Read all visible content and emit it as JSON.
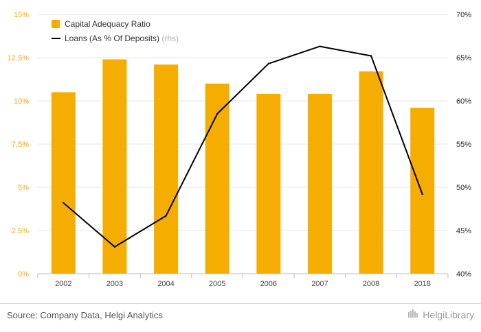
{
  "chart_data": {
    "type": "bar",
    "categories": [
      "2002",
      "2003",
      "2004",
      "2005",
      "2006",
      "2007",
      "2008",
      "2018"
    ],
    "series": [
      {
        "name": "Capital Adequacy Ratio",
        "kind": "bar",
        "axis": "left",
        "color": "#f5ae00",
        "values": [
          10.5,
          12.4,
          12.1,
          11.0,
          10.4,
          10.4,
          11.7,
          9.6
        ]
      },
      {
        "name": "Loans (As % Of Deposits)",
        "name_suffix": "(rhs)",
        "kind": "line",
        "axis": "right",
        "color": "#000000",
        "values": [
          48.2,
          43.1,
          46.7,
          58.5,
          64.3,
          66.3,
          65.2,
          49.2
        ]
      }
    ],
    "y_left": {
      "ylim": [
        0,
        15
      ],
      "ticks": [
        0,
        2.5,
        5,
        7.5,
        10,
        12.5,
        15
      ],
      "tick_labels": [
        "0%",
        "2.5%",
        "5%",
        "7.5%",
        "10%",
        "12.5%",
        "15%"
      ]
    },
    "y_right": {
      "ylim": [
        40,
        70
      ],
      "ticks": [
        40,
        45,
        50,
        55,
        60,
        65,
        70
      ],
      "tick_labels": [
        "40%",
        "45%",
        "50%",
        "55%",
        "60%",
        "65%",
        "70%"
      ]
    },
    "grid": true,
    "legend_position": "top-left"
  },
  "footer": {
    "source": "Source: Company Data, Helgi Analytics",
    "brand": "HelgiLibrary"
  },
  "colors": {
    "bar": "#f5ae00",
    "line": "#000000",
    "left_axis_text": "#f5a800",
    "grid": "#e6e6e6"
  }
}
